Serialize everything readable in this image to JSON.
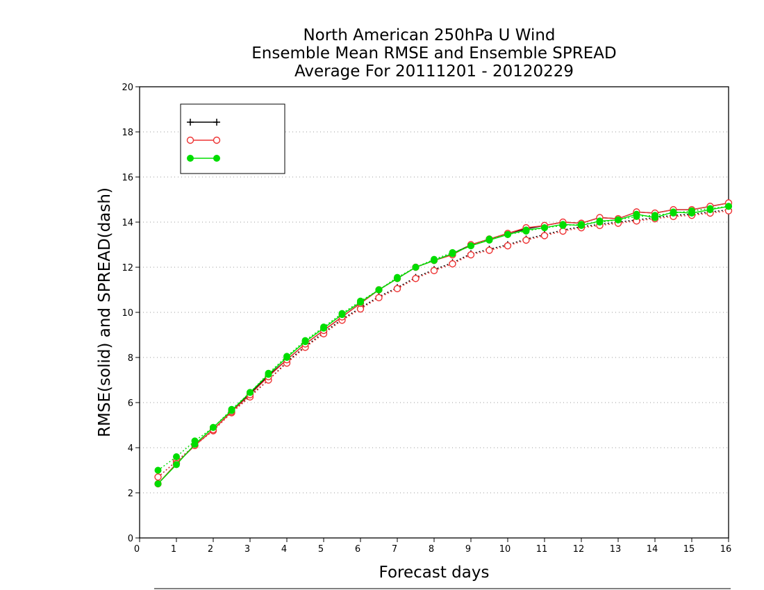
{
  "chart_data": {
    "type": "line",
    "title_lines": [
      "North American 250hPa U Wind",
      "Ensemble Mean RMSE and Ensemble SPREAD",
      "Average For 20111201 - 20120229"
    ],
    "xlabel": "Forecast days",
    "ylabel": "RMSE(solid) and SPREAD(dash)",
    "xlim": [
      0,
      16
    ],
    "ylim": [
      0,
      20
    ],
    "x_ticks": [
      "0",
      "1",
      "2",
      "3",
      "4",
      "5",
      "6",
      "7",
      "8",
      "9",
      "10",
      "11",
      "12",
      "13",
      "14",
      "15",
      "16"
    ],
    "y_ticks": [
      "0",
      "2",
      "4",
      "6",
      "8",
      "10",
      "12",
      "14",
      "16",
      "18",
      "20"
    ],
    "grid": "horizontal dotted",
    "legend_position": "top-left",
    "x": [
      0.5,
      1,
      1.5,
      2,
      2.5,
      3,
      3.5,
      4,
      4.5,
      5,
      5.5,
      6,
      6.5,
      7,
      7.5,
      8,
      8.5,
      9,
      9.5,
      10,
      10.5,
      11,
      11.5,
      12,
      12.5,
      13,
      13.5,
      14,
      14.5,
      15,
      15.5,
      16
    ],
    "series": [
      {
        "name": "",
        "color": "#000000",
        "marker": "plus",
        "rmse": [
          2.4,
          3.3,
          4.1,
          4.8,
          5.6,
          6.4,
          7.2,
          7.9,
          8.6,
          9.2,
          9.8,
          10.4,
          11.0,
          11.5,
          12.0,
          12.3,
          12.6,
          13.0,
          13.25,
          13.5,
          13.7,
          13.85,
          14.0,
          13.95,
          14.2,
          14.15,
          14.45,
          14.4,
          14.55,
          14.55,
          14.7,
          14.85
        ],
        "spread": [
          2.7,
          3.4,
          4.1,
          4.8,
          5.6,
          6.3,
          7.0,
          7.8,
          8.5,
          9.1,
          9.7,
          10.2,
          10.7,
          11.1,
          11.55,
          11.9,
          12.2,
          12.6,
          12.8,
          13.0,
          13.25,
          13.45,
          13.65,
          13.8,
          13.9,
          14.0,
          14.1,
          14.2,
          14.3,
          14.35,
          14.45,
          14.55
        ]
      },
      {
        "name": "",
        "color": "#ee3333",
        "marker": "open-circle",
        "rmse": [
          2.4,
          3.3,
          4.1,
          4.8,
          5.6,
          6.35,
          7.15,
          7.9,
          8.6,
          9.2,
          9.8,
          10.4,
          11.0,
          11.5,
          12.0,
          12.3,
          12.55,
          13.0,
          13.25,
          13.5,
          13.75,
          13.85,
          14.0,
          13.95,
          14.2,
          14.15,
          14.45,
          14.4,
          14.55,
          14.55,
          14.7,
          14.85
        ],
        "spread": [
          2.7,
          3.4,
          4.1,
          4.75,
          5.55,
          6.25,
          7.0,
          7.75,
          8.45,
          9.05,
          9.65,
          10.15,
          10.65,
          11.05,
          11.5,
          11.85,
          12.15,
          12.55,
          12.75,
          12.95,
          13.2,
          13.4,
          13.6,
          13.75,
          13.85,
          13.95,
          14.05,
          14.15,
          14.25,
          14.3,
          14.4,
          14.5
        ]
      },
      {
        "name": "",
        "color": "#00dd00",
        "marker": "filled-circle",
        "rmse": [
          2.4,
          3.25,
          4.15,
          4.9,
          5.65,
          6.45,
          7.25,
          8.0,
          8.7,
          9.3,
          9.9,
          10.45,
          11.0,
          11.5,
          12.0,
          12.3,
          12.6,
          12.95,
          13.2,
          13.45,
          13.65,
          13.75,
          13.9,
          13.85,
          14.05,
          14.1,
          14.35,
          14.2,
          14.45,
          14.4,
          14.55,
          14.7
        ],
        "spread": [
          3.0,
          3.6,
          4.3,
          4.9,
          5.7,
          6.45,
          7.3,
          8.05,
          8.75,
          9.35,
          9.95,
          10.5,
          11.0,
          11.55,
          12.0,
          12.35,
          12.65,
          12.95,
          13.25,
          13.45,
          13.6,
          13.75,
          13.85,
          13.9,
          14.0,
          14.1,
          14.25,
          14.3,
          14.4,
          14.5,
          14.6,
          14.7
        ]
      }
    ]
  }
}
